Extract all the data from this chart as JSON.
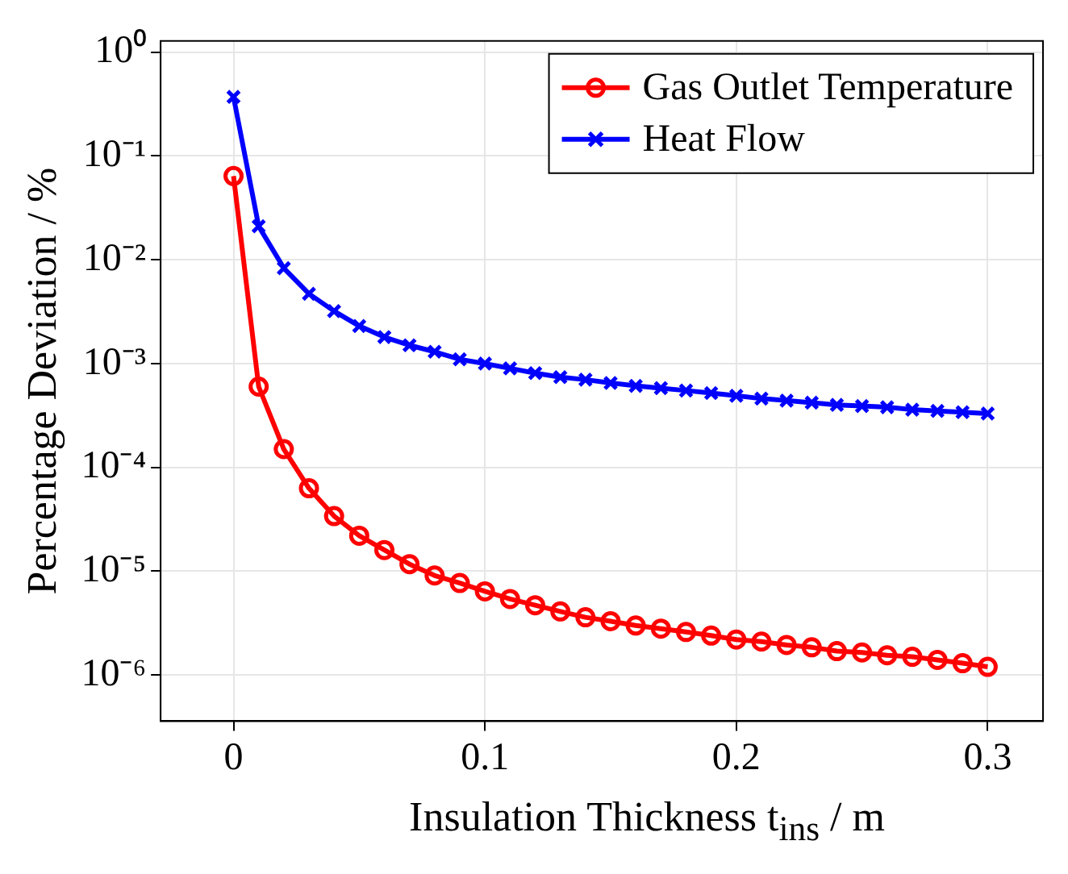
{
  "chart_data": {
    "type": "line",
    "xlabel": "Insulation Thickness t$_{ins}$ / m",
    "ylabel": "Percentage Deviation / %",
    "x": [
      0,
      0.01,
      0.02,
      0.03,
      0.04,
      0.05,
      0.06,
      0.07,
      0.08,
      0.09,
      0.1,
      0.11,
      0.12,
      0.13,
      0.14,
      0.15,
      0.16,
      0.17,
      0.18,
      0.19,
      0.2,
      0.21,
      0.22,
      0.23,
      0.24,
      0.25,
      0.26,
      0.27,
      0.28,
      0.29,
      0.3
    ],
    "series": [
      {
        "name": "Gas Outlet Temperature",
        "color": "#ff0000",
        "marker": "circle",
        "values": [
          0.064,
          0.0006,
          0.00015,
          6.3e-05,
          3.4e-05,
          2.2e-05,
          1.6e-05,
          1.17e-05,
          9.1e-06,
          7.7e-06,
          6.4e-06,
          5.4e-06,
          4.7e-06,
          4.1e-06,
          3.6e-06,
          3.3e-06,
          3e-06,
          2.8e-06,
          2.6e-06,
          2.4e-06,
          2.2e-06,
          2.1e-06,
          1.95e-06,
          1.85e-06,
          1.7e-06,
          1.65e-06,
          1.55e-06,
          1.5e-06,
          1.4e-06,
          1.3e-06,
          1.2e-06
        ]
      },
      {
        "name": "Heat Flow",
        "color": "#0000ff",
        "marker": "cross",
        "values": [
          0.37,
          0.021,
          0.0083,
          0.0047,
          0.0032,
          0.0023,
          0.0018,
          0.0015,
          0.0013,
          0.0011,
          0.001,
          0.0009,
          0.00081,
          0.00074,
          0.0007,
          0.00065,
          0.00061,
          0.00058,
          0.00055,
          0.00052,
          0.00049,
          0.00046,
          0.00044,
          0.00042,
          0.0004,
          0.00039,
          0.00038,
          0.00036,
          0.00035,
          0.00034,
          0.00033
        ]
      }
    ],
    "xlim": [
      -0.029,
      0.322
    ],
    "xticks": [
      0,
      0.1,
      0.2,
      0.3
    ],
    "ylim": [
      3.6e-07,
      1.28
    ],
    "yticks": [
      {
        "value": 1,
        "label": "10⁰"
      },
      {
        "value": 0.1,
        "label": "10⁻¹"
      },
      {
        "value": 0.01,
        "label": "10⁻²"
      },
      {
        "value": 0.001,
        "label": "10⁻³"
      },
      {
        "value": 0.0001,
        "label": "10⁻⁴"
      },
      {
        "value": 1e-05,
        "label": "10⁻⁵"
      },
      {
        "value": 1e-06,
        "label": "10⁻⁶"
      }
    ],
    "log": "y",
    "grid": true,
    "legend": "top right",
    "line_style": "solid"
  }
}
